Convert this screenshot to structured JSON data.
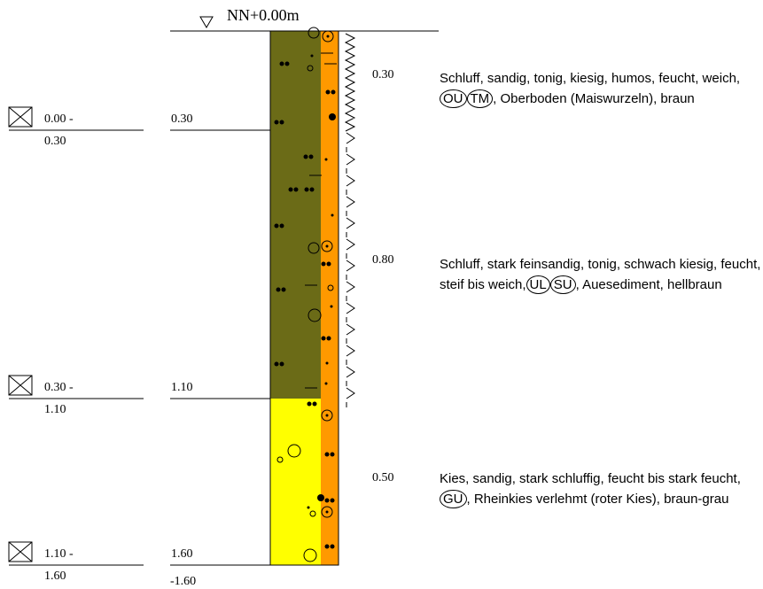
{
  "header": {
    "level": "NN+0.00m"
  },
  "layers": [
    {
      "sample": [
        "0.00 -",
        "0.30"
      ],
      "depth": "0.30",
      "thickness": "0.30",
      "description": {
        "before": "Schluff, sandig, tonig, kiesig, humos, feucht, weich,",
        "groups": [
          "OU",
          "TM"
        ],
        "after": ", Oberboden (Maiswurzeln), braun"
      }
    },
    {
      "sample": [
        "0.30 -",
        "1.10"
      ],
      "depth": "1.10",
      "thickness": "0.80",
      "description": {
        "before": "Schluff, stark feinsandig, tonig, schwach kiesig, feucht, steif bis weich,",
        "groups": [
          "UL",
          "SU"
        ],
        "after": ", Auesediment, hellbraun"
      }
    },
    {
      "sample": [
        "1.10 -",
        "1.60"
      ],
      "depth": "1.60",
      "thickness": "0.50",
      "description": {
        "before": "Kies, sandig, stark schluffig, feucht bis stark feucht,",
        "groups": [
          "GU"
        ],
        "after": ", Rheinkies verlehmt (roter Kies), braun-grau"
      }
    }
  ],
  "final_depth": "-1.60"
}
